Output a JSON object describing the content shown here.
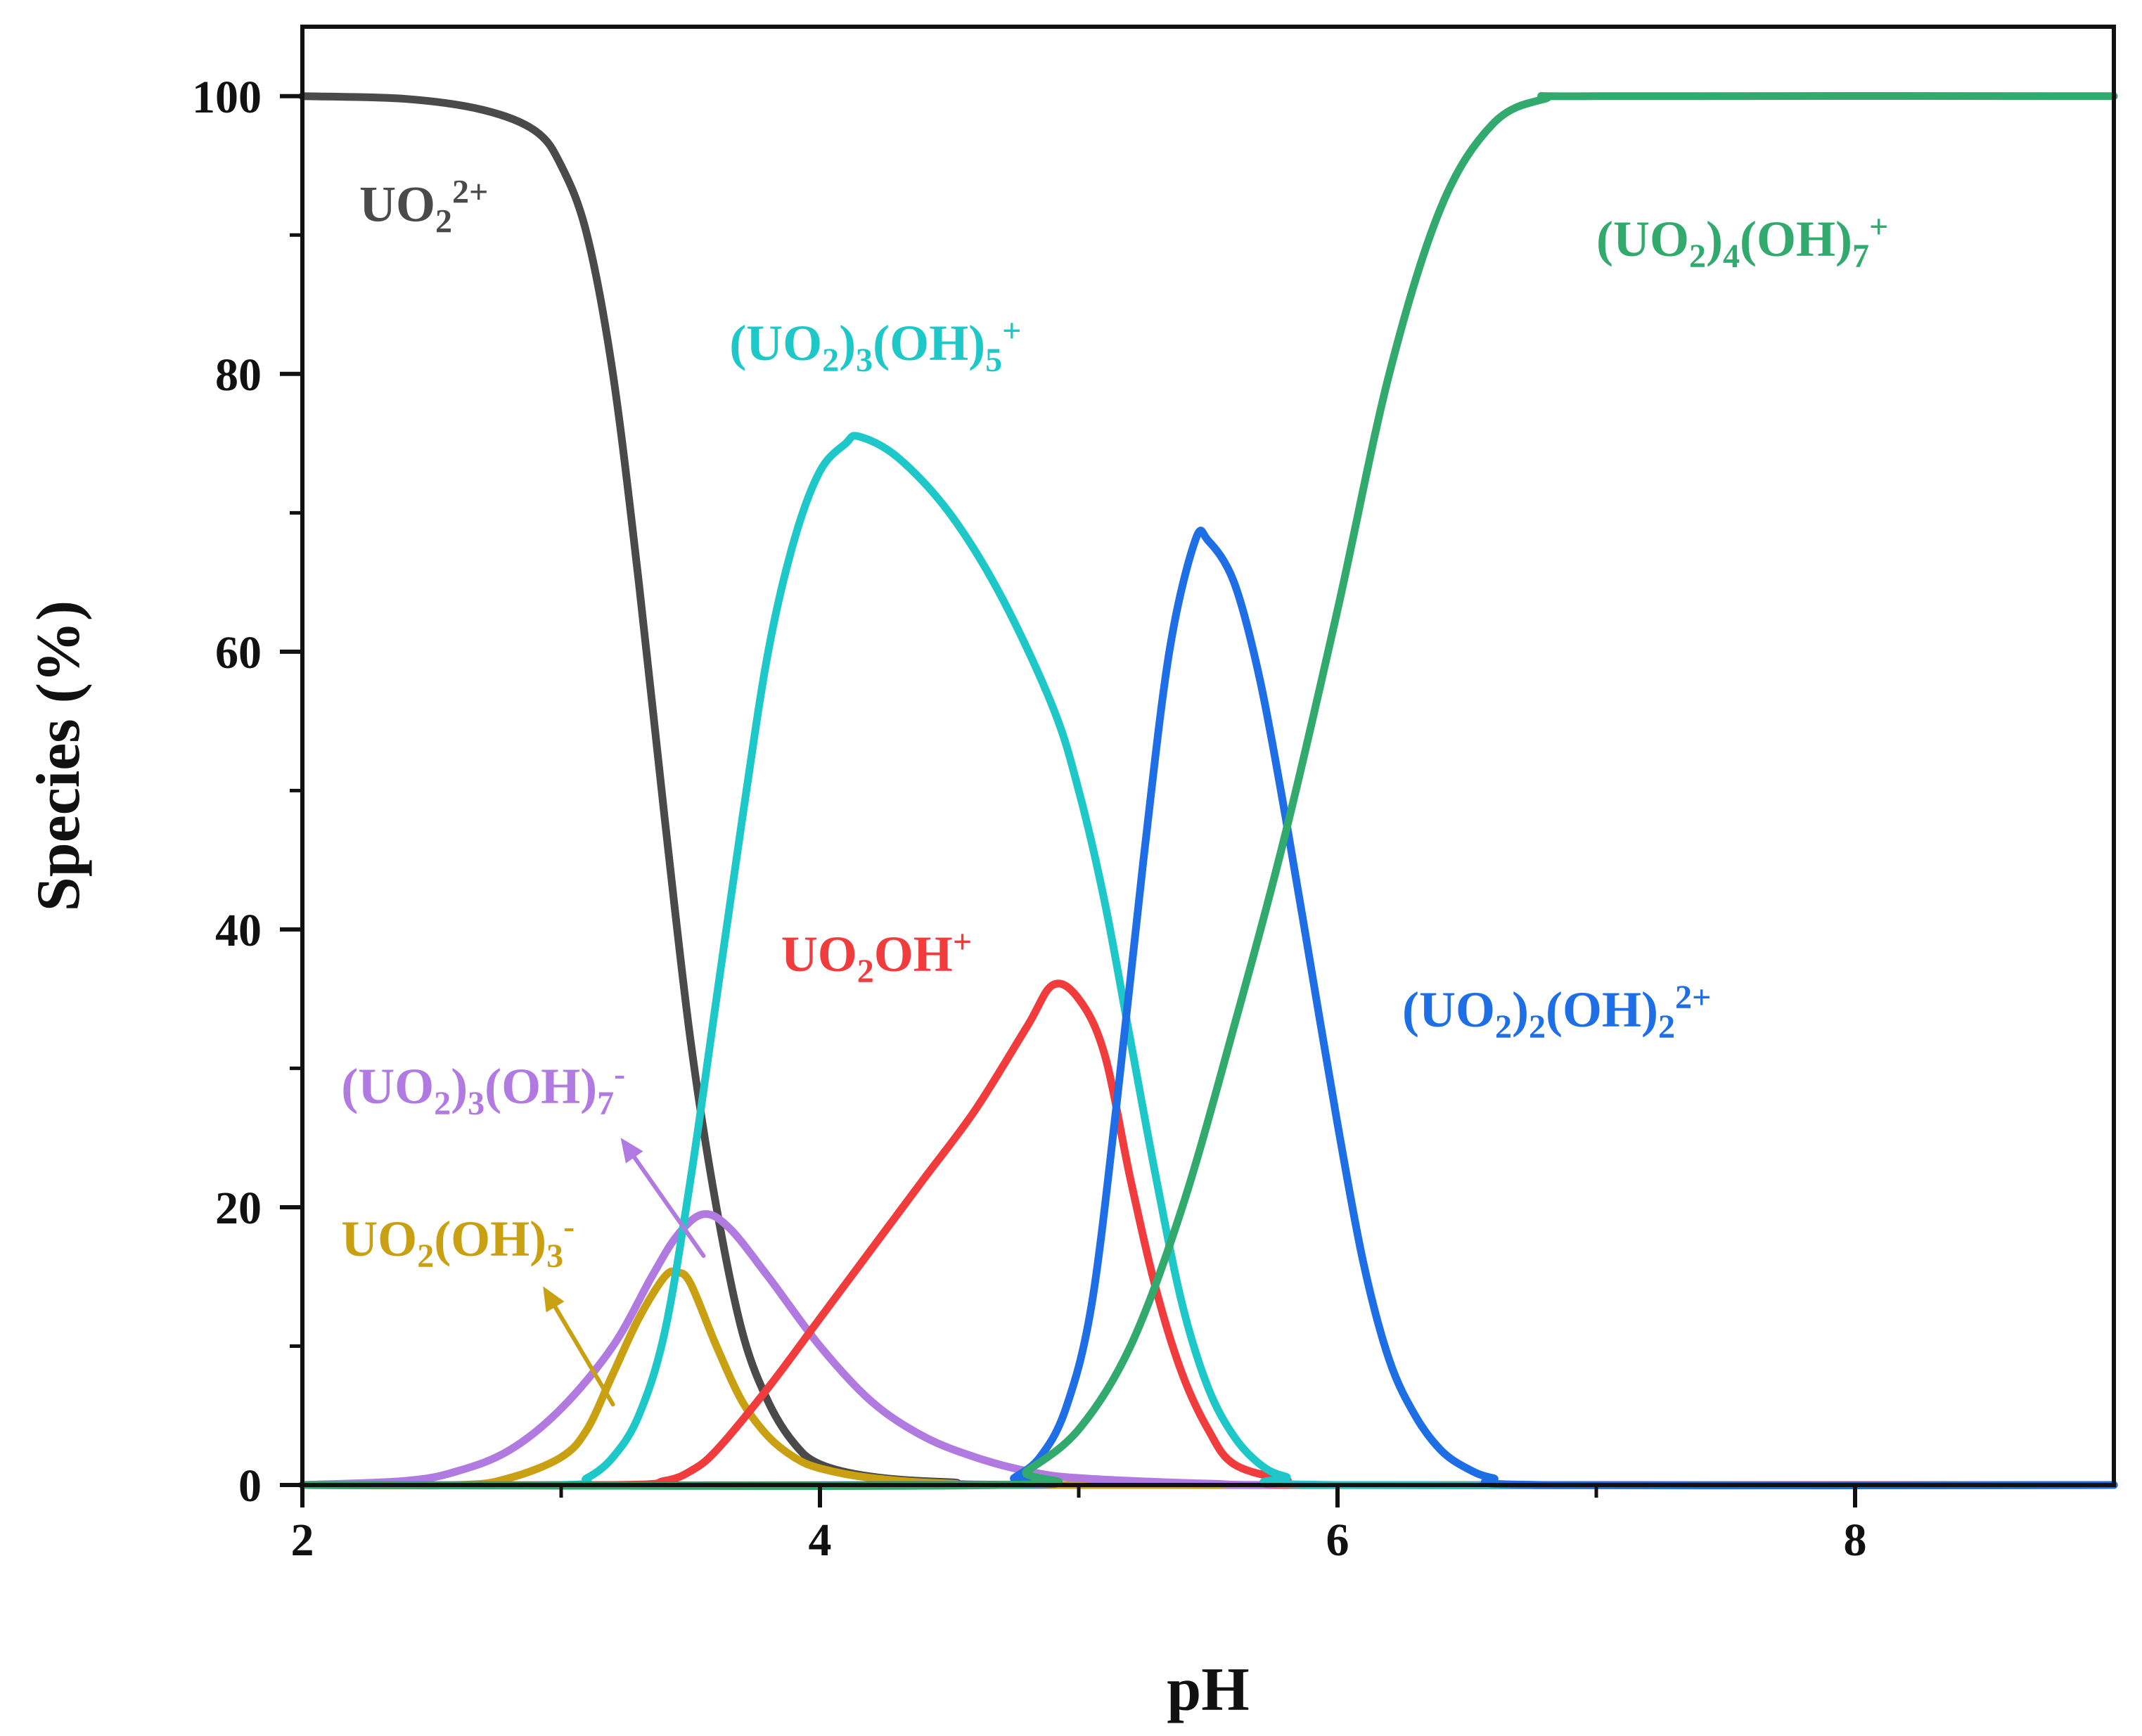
{
  "chart_data": {
    "type": "line",
    "title": "",
    "xlabel": "pH",
    "ylabel": "Species (%)",
    "xlim": [
      2,
      9
    ],
    "ylim": [
      0,
      105
    ],
    "x_ticks": [
      2,
      4,
      6,
      8
    ],
    "y_ticks": [
      0,
      20,
      40,
      60,
      80,
      100
    ],
    "grid": false,
    "series": [
      {
        "id": "uo2",
        "name": "UO2 2+",
        "color": "#4a4a4a",
        "label_parts": [
          [
            "n",
            "UO"
          ],
          [
            "sub",
            "2"
          ],
          [
            "sup",
            "2+"
          ]
        ],
        "points": [
          [
            2,
            100
          ],
          [
            2.4,
            99.8
          ],
          [
            2.7,
            99
          ],
          [
            2.9,
            97.5
          ],
          [
            3.0,
            95
          ],
          [
            3.1,
            90
          ],
          [
            3.2,
            80
          ],
          [
            3.3,
            65
          ],
          [
            3.4,
            48
          ],
          [
            3.5,
            32
          ],
          [
            3.6,
            20
          ],
          [
            3.7,
            11
          ],
          [
            3.8,
            6
          ],
          [
            3.9,
            3
          ],
          [
            4.0,
            1.5
          ],
          [
            4.2,
            0.6
          ],
          [
            4.5,
            0.2
          ],
          [
            5,
            0
          ],
          [
            9,
            0
          ]
        ]
      },
      {
        "id": "uo2oh3",
        "name": "UO2(OH)3 -",
        "color": "#c8a012",
        "label_parts": [
          [
            "n",
            "UO"
          ],
          [
            "sub",
            "2"
          ],
          [
            "n",
            "(OH)"
          ],
          [
            "sub",
            "3"
          ],
          [
            "sup",
            "-"
          ]
        ],
        "points": [
          [
            2,
            0
          ],
          [
            2.6,
            0
          ],
          [
            2.8,
            0.5
          ],
          [
            3.0,
            2
          ],
          [
            3.1,
            4
          ],
          [
            3.2,
            8
          ],
          [
            3.3,
            12
          ],
          [
            3.4,
            15
          ],
          [
            3.45,
            15.3
          ],
          [
            3.5,
            14.5
          ],
          [
            3.6,
            10
          ],
          [
            3.7,
            6
          ],
          [
            3.8,
            3.5
          ],
          [
            3.9,
            2
          ],
          [
            4.0,
            1.2
          ],
          [
            4.2,
            0.5
          ],
          [
            4.5,
            0.1
          ],
          [
            5,
            0
          ],
          [
            9,
            0
          ]
        ]
      },
      {
        "id": "uo23oh7",
        "name": "(UO2)3(OH)7 -",
        "color": "#b07ae0",
        "label_parts": [
          [
            "n",
            "(UO"
          ],
          [
            "sub",
            "2"
          ],
          [
            "n",
            ")"
          ],
          [
            "sub",
            "3"
          ],
          [
            "n",
            "(OH)"
          ],
          [
            "sub",
            "7"
          ],
          [
            "sup",
            "-"
          ]
        ],
        "points": [
          [
            2,
            0
          ],
          [
            2.4,
            0.3
          ],
          [
            2.6,
            1
          ],
          [
            2.8,
            2.5
          ],
          [
            3.0,
            5.5
          ],
          [
            3.2,
            10
          ],
          [
            3.35,
            15
          ],
          [
            3.45,
            18
          ],
          [
            3.55,
            19.5
          ],
          [
            3.65,
            18.5
          ],
          [
            3.8,
            15
          ],
          [
            4.0,
            10
          ],
          [
            4.2,
            6
          ],
          [
            4.4,
            3.5
          ],
          [
            4.6,
            2
          ],
          [
            4.8,
            1
          ],
          [
            5.0,
            0.5
          ],
          [
            5.5,
            0.1
          ],
          [
            6,
            0
          ],
          [
            9,
            0
          ]
        ]
      },
      {
        "id": "uo2oh",
        "name": "UO2OH+",
        "color": "#f03c3c",
        "label_parts": [
          [
            "n",
            "UO"
          ],
          [
            "sub",
            "2"
          ],
          [
            "n",
            "OH"
          ],
          [
            "sup",
            "+"
          ]
        ],
        "points": [
          [
            2,
            0
          ],
          [
            3.2,
            0
          ],
          [
            3.4,
            0.3
          ],
          [
            3.5,
            1
          ],
          [
            3.6,
            2.5
          ],
          [
            3.8,
            7
          ],
          [
            4.0,
            12
          ],
          [
            4.2,
            17
          ],
          [
            4.4,
            22
          ],
          [
            4.6,
            27
          ],
          [
            4.8,
            33
          ],
          [
            4.9,
            36
          ],
          [
            5.0,
            35
          ],
          [
            5.1,
            31
          ],
          [
            5.2,
            22
          ],
          [
            5.3,
            14
          ],
          [
            5.4,
            8
          ],
          [
            5.5,
            4
          ],
          [
            5.6,
            1.5
          ],
          [
            5.8,
            0.4
          ],
          [
            6,
            0
          ],
          [
            9,
            0
          ]
        ]
      },
      {
        "id": "uo23oh5",
        "name": "(UO2)3(OH)5+",
        "color": "#1ec8c8",
        "label_parts": [
          [
            "n",
            "(UO"
          ],
          [
            "sub",
            "2"
          ],
          [
            "n",
            ")"
          ],
          [
            "sub",
            "3"
          ],
          [
            "n",
            "(OH)"
          ],
          [
            "sub",
            "5"
          ],
          [
            "sup",
            "+"
          ]
        ],
        "points": [
          [
            2,
            0
          ],
          [
            3.0,
            0
          ],
          [
            3.1,
            0.5
          ],
          [
            3.2,
            2
          ],
          [
            3.3,
            5
          ],
          [
            3.4,
            11
          ],
          [
            3.5,
            22
          ],
          [
            3.6,
            35
          ],
          [
            3.7,
            48
          ],
          [
            3.8,
            60
          ],
          [
            3.9,
            68
          ],
          [
            4.0,
            73
          ],
          [
            4.1,
            75
          ],
          [
            4.15,
            75.5
          ],
          [
            4.3,
            74
          ],
          [
            4.5,
            70
          ],
          [
            4.7,
            64
          ],
          [
            4.9,
            56
          ],
          [
            5.0,
            50
          ],
          [
            5.1,
            42
          ],
          [
            5.2,
            32
          ],
          [
            5.3,
            22
          ],
          [
            5.4,
            13
          ],
          [
            5.5,
            7
          ],
          [
            5.6,
            3.5
          ],
          [
            5.7,
            1.5
          ],
          [
            5.8,
            0.6
          ],
          [
            6.0,
            0
          ],
          [
            9,
            0
          ]
        ]
      },
      {
        "id": "uo22oh2",
        "name": "(UO2)2(OH)2 2+",
        "color": "#1e6ee6",
        "label_parts": [
          [
            "n",
            "(UO"
          ],
          [
            "sub",
            "2"
          ],
          [
            "n",
            ")"
          ],
          [
            "sub",
            "2"
          ],
          [
            "n",
            "(OH)"
          ],
          [
            "sub",
            "2"
          ],
          [
            "sup",
            "2+"
          ]
        ],
        "points": [
          [
            2,
            0
          ],
          [
            4.7,
            0
          ],
          [
            4.75,
            0.5
          ],
          [
            4.85,
            2
          ],
          [
            4.95,
            5.5
          ],
          [
            5.05,
            13
          ],
          [
            5.15,
            28
          ],
          [
            5.25,
            45
          ],
          [
            5.35,
            60
          ],
          [
            5.45,
            68
          ],
          [
            5.5,
            68
          ],
          [
            5.6,
            65
          ],
          [
            5.7,
            58
          ],
          [
            5.8,
            48
          ],
          [
            5.9,
            37
          ],
          [
            6.0,
            26
          ],
          [
            6.1,
            16
          ],
          [
            6.2,
            9
          ],
          [
            6.3,
            5
          ],
          [
            6.4,
            2.5
          ],
          [
            6.5,
            1.2
          ],
          [
            6.6,
            0.5
          ],
          [
            6.8,
            0
          ],
          [
            9,
            0
          ]
        ]
      },
      {
        "id": "uo24oh7",
        "name": "(UO2)4(OH)7+",
        "color": "#32aa6e",
        "label_parts": [
          [
            "n",
            "(UO"
          ],
          [
            "sub",
            "2"
          ],
          [
            "n",
            ")"
          ],
          [
            "sub",
            "4"
          ],
          [
            "n",
            "(OH)"
          ],
          [
            "sub",
            "7"
          ],
          [
            "sup",
            "+"
          ]
        ],
        "points": [
          [
            2,
            0
          ],
          [
            4.7,
            0
          ],
          [
            4.8,
            1
          ],
          [
            5.0,
            4
          ],
          [
            5.2,
            10
          ],
          [
            5.4,
            20
          ],
          [
            5.6,
            33
          ],
          [
            5.8,
            47
          ],
          [
            6.0,
            63
          ],
          [
            6.2,
            80
          ],
          [
            6.4,
            92
          ],
          [
            6.6,
            98
          ],
          [
            6.8,
            99.8
          ],
          [
            7.0,
            100
          ],
          [
            9,
            100
          ]
        ]
      }
    ],
    "labels": [
      {
        "series": "uo2",
        "x": 2.22,
        "y": 91
      },
      {
        "series": "uo23oh5",
        "x": 3.65,
        "y": 81
      },
      {
        "series": "uo24oh7",
        "x": 7.0,
        "y": 88.5
      },
      {
        "series": "uo2oh",
        "x": 3.85,
        "y": 37
      },
      {
        "series": "uo22oh2",
        "x": 6.25,
        "y": 33
      },
      {
        "series": "uo23oh7",
        "x": 2.15,
        "y": 27.5
      },
      {
        "series": "uo2oh3",
        "x": 2.15,
        "y": 16.5
      }
    ],
    "arrows": [
      {
        "series": "uo23oh7",
        "from": [
          3.55,
          16.5
        ],
        "to": [
          3.23,
          25
        ]
      },
      {
        "series": "uo2oh3",
        "from": [
          3.2,
          5.8
        ],
        "to": [
          2.93,
          14.3
        ]
      }
    ]
  }
}
